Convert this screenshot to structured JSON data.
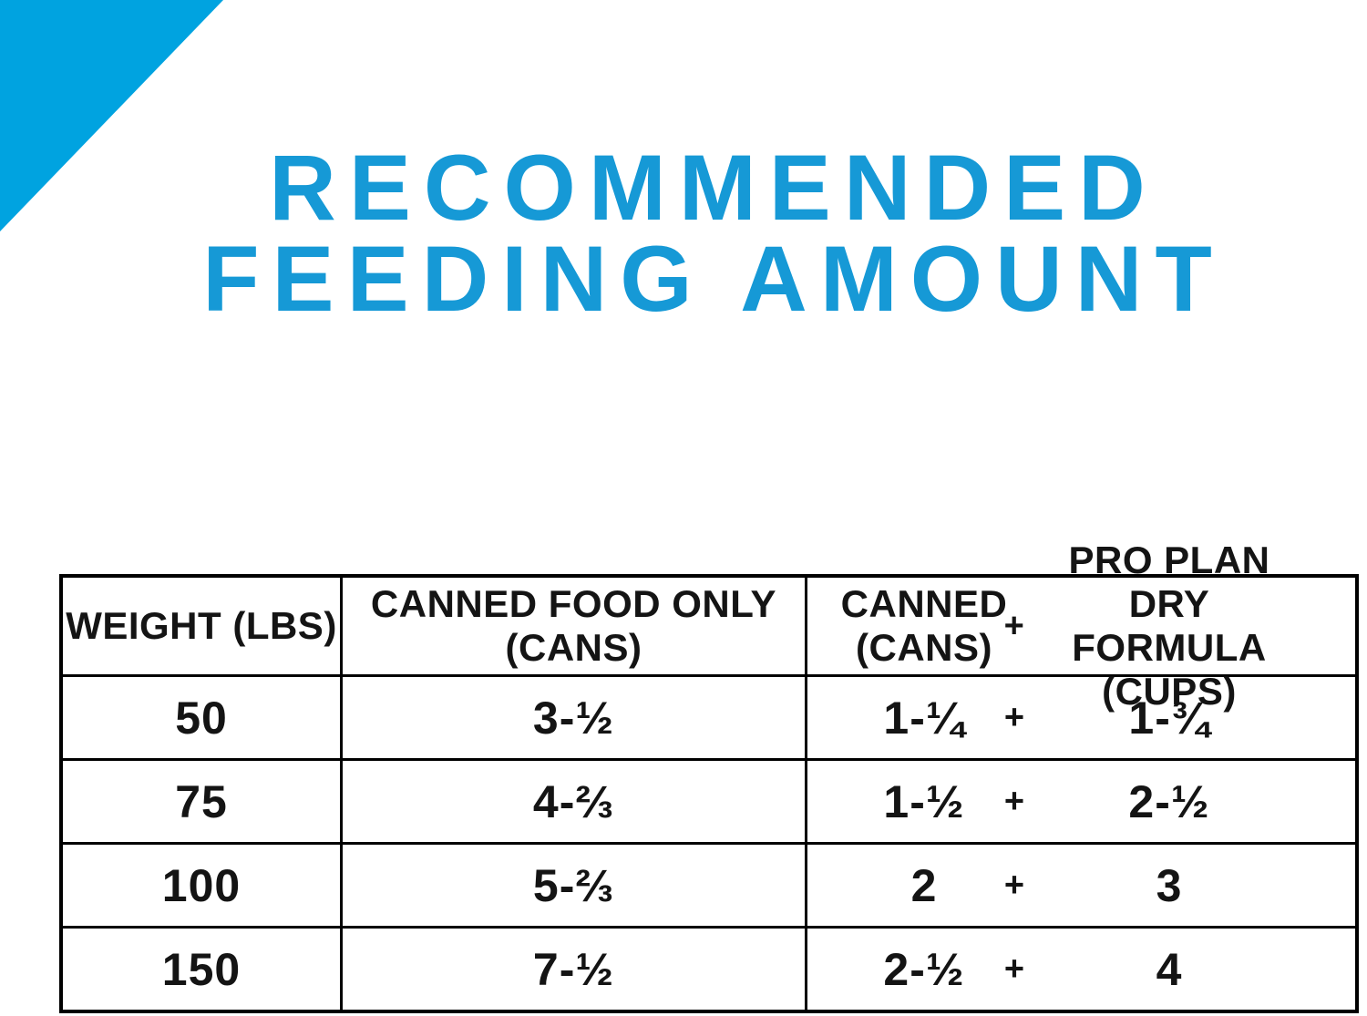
{
  "colors": {
    "brand_blue_triangle": "#00A3E0",
    "title_blue": "#1699D6",
    "text_black": "#141414",
    "table_border": "#000000",
    "background": "#ffffff"
  },
  "title": {
    "line1": "RECOMMENDED",
    "line2": "FEEDING AMOUNT"
  },
  "table": {
    "headers": {
      "col1": "WEIGHT (LBS)",
      "col2_line1": "CANNED FOOD ONLY",
      "col2_line2": "(CANS)",
      "col3_left_line1": "CANNED",
      "col3_left_line2": "(CANS)",
      "col3_plus": "+",
      "col3_right_line1": "PRO PLAN DRY",
      "col3_right_line2": "FORMULA (CUPS)"
    },
    "rows": [
      {
        "weight": "50",
        "canned_only": "3-½",
        "canned": "1-¼",
        "plus": "+",
        "dry": "1-¾"
      },
      {
        "weight": "75",
        "canned_only": "4-⅔",
        "canned": "1-½",
        "plus": "+",
        "dry": "2-½"
      },
      {
        "weight": "100",
        "canned_only": "5-⅔",
        "canned": "2",
        "plus": "+",
        "dry": "3"
      },
      {
        "weight": "150",
        "canned_only": "7-½",
        "canned": "2-½",
        "plus": "+",
        "dry": "4"
      }
    ]
  },
  "chart_data": {
    "type": "table",
    "title": "RECOMMENDED FEEDING AMOUNT",
    "columns": [
      "WEIGHT (LBS)",
      "CANNED FOOD ONLY (CANS)",
      "CANNED (CANS)",
      "PRO PLAN DRY FORMULA (CUPS)"
    ],
    "rows": [
      [
        50,
        "3-1/2",
        "1-1/4",
        "1-3/4"
      ],
      [
        75,
        "4-2/3",
        "1-1/2",
        "2-1/2"
      ],
      [
        100,
        "5-2/3",
        "2",
        "3"
      ],
      [
        150,
        "7-1/2",
        "2-1/2",
        "4"
      ]
    ]
  }
}
